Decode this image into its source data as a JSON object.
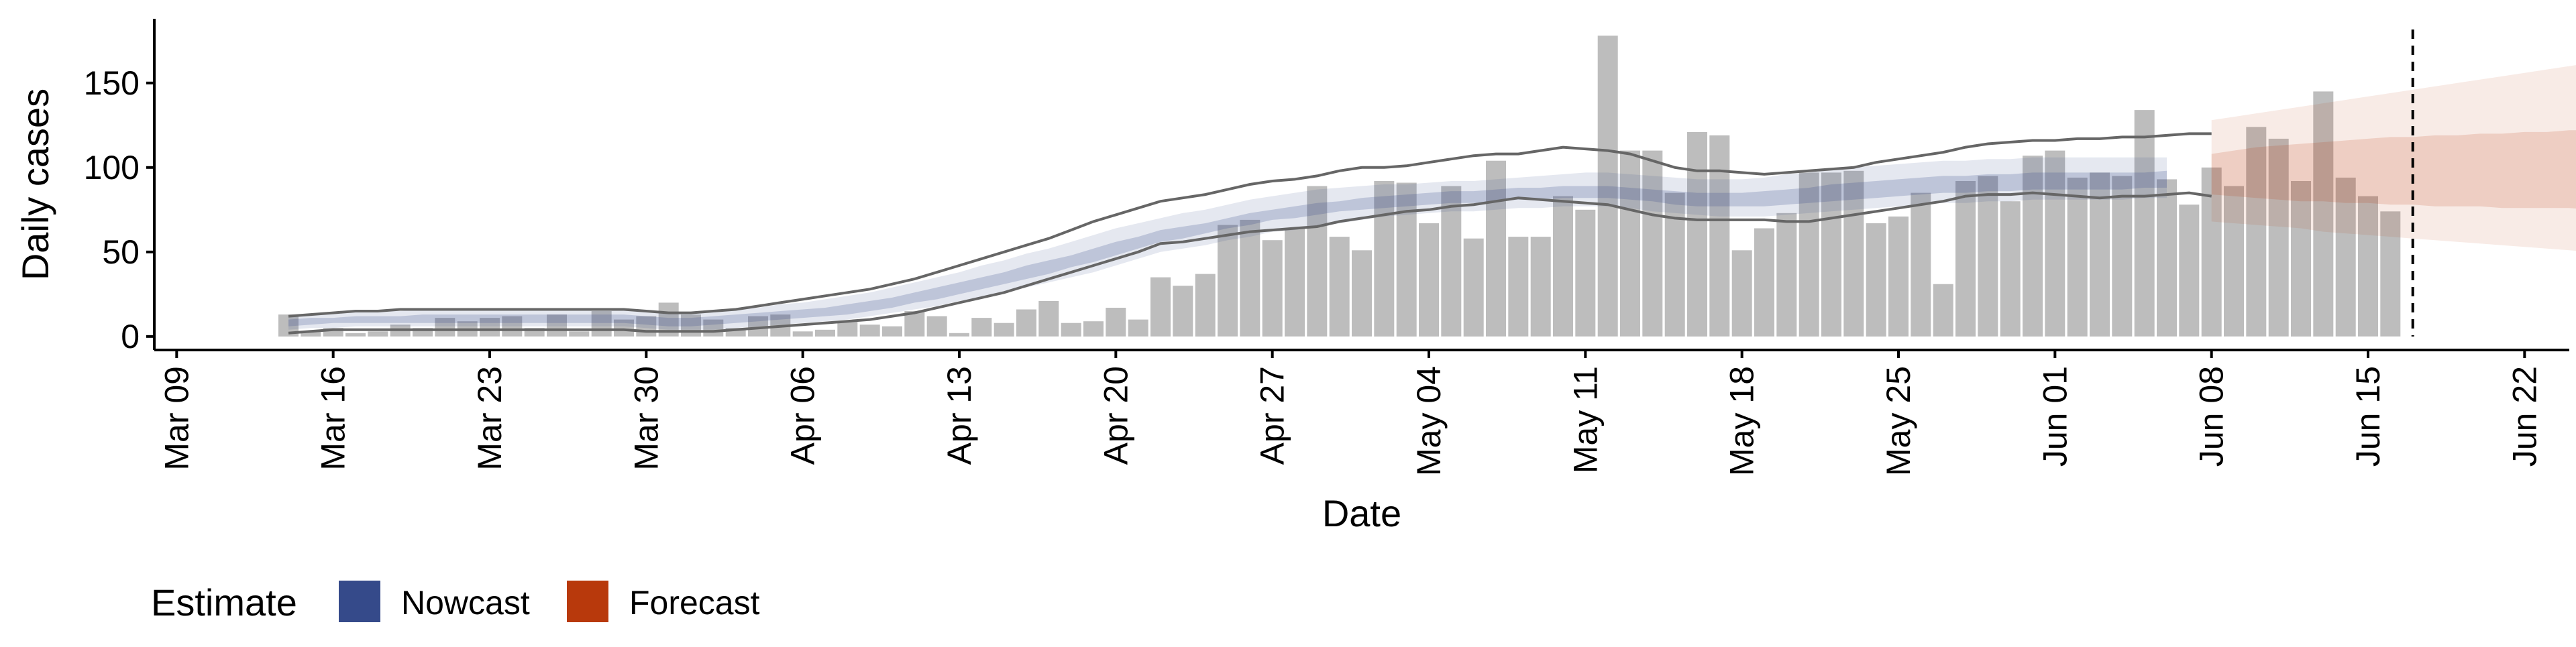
{
  "chart_data": {
    "type": "bar",
    "xlabel": "Date",
    "ylabel": "Daily cases",
    "xlim": [
      "2020-03-08",
      "2020-06-24"
    ],
    "ylim": [
      -8,
      188
    ],
    "x_ticks": [
      "2020-03-09",
      "2020-03-16",
      "2020-03-23",
      "2020-03-30",
      "2020-04-06",
      "2020-04-13",
      "2020-04-20",
      "2020-04-27",
      "2020-05-04",
      "2020-05-11",
      "2020-05-18",
      "2020-05-25",
      "2020-06-01",
      "2020-06-08",
      "2020-06-15",
      "2020-06-22"
    ],
    "x_tick_labels": [
      "Mar 09",
      "Mar 16",
      "Mar 23",
      "Mar 30",
      "Apr 06",
      "Apr 13",
      "Apr 20",
      "Apr 27",
      "May 04",
      "May 11",
      "May 18",
      "May 25",
      "Jun 01",
      "Jun 08",
      "Jun 15",
      "Jun 22"
    ],
    "y_ticks": [
      0,
      50,
      100,
      150
    ],
    "y_tick_labels": [
      "0",
      "50",
      "100",
      "150"
    ],
    "bars": {
      "start_date": "2020-03-14",
      "values": [
        13,
        3,
        5,
        2,
        3,
        7,
        5,
        11,
        9,
        11,
        12,
        5,
        13,
        3,
        15,
        10,
        12,
        20,
        13,
        10,
        5,
        12,
        13,
        3,
        4,
        9,
        7,
        6,
        15,
        12,
        2,
        11,
        8,
        16,
        21,
        8,
        9,
        17,
        10,
        35,
        30,
        37,
        66,
        69,
        57,
        64,
        89,
        59,
        51,
        92,
        91,
        67,
        89,
        58,
        104,
        59,
        59,
        83,
        75,
        178,
        110,
        110,
        85,
        121,
        119,
        51,
        64,
        73,
        97,
        97,
        98,
        67,
        71,
        85,
        31,
        92,
        95,
        80,
        107,
        110,
        94,
        97,
        95,
        134,
        93,
        78,
        100,
        89,
        124,
        117,
        92,
        145,
        94,
        83,
        74
      ]
    },
    "nowcast": {
      "start_date": "2020-03-14",
      "lower90": [
        4,
        5,
        5,
        6,
        6,
        6,
        6,
        6,
        6,
        6,
        6,
        6,
        6,
        6,
        6,
        6,
        5,
        4,
        4,
        4,
        5,
        6,
        7,
        8,
        9,
        10,
        12,
        14,
        16,
        18,
        21,
        23,
        26,
        29,
        32,
        35,
        38,
        42,
        46,
        50,
        52,
        54,
        57,
        59,
        62,
        63,
        65,
        67,
        69,
        71,
        72,
        73,
        74,
        74,
        75,
        76,
        76,
        77,
        77,
        77,
        76,
        74,
        73,
        72,
        71,
        71,
        71,
        72,
        73,
        74,
        75,
        76,
        77,
        78,
        79,
        79,
        80,
        80,
        81,
        81,
        81,
        81,
        81,
        82,
        82
      ],
      "upper90": [
        12,
        13,
        14,
        15,
        15,
        15,
        16,
        16,
        16,
        16,
        16,
        16,
        16,
        16,
        16,
        16,
        15,
        14,
        14,
        15,
        16,
        17,
        19,
        20,
        22,
        24,
        26,
        29,
        32,
        35,
        38,
        42,
        45,
        49,
        52,
        56,
        60,
        64,
        67,
        70,
        73,
        75,
        78,
        81,
        83,
        85,
        87,
        88,
        89,
        90,
        90,
        91,
        92,
        92,
        93,
        94,
        95,
        96,
        97,
        97,
        96,
        95,
        94,
        93,
        93,
        93,
        94,
        96,
        97,
        99,
        100,
        101,
        102,
        103,
        104,
        104,
        105,
        105,
        106,
        106,
        106,
        106,
        106,
        106,
        106
      ],
      "lower50": [
        6,
        7,
        8,
        8,
        8,
        8,
        8,
        8,
        8,
        8,
        8,
        8,
        8,
        8,
        8,
        8,
        7,
        6,
        6,
        7,
        8,
        9,
        10,
        11,
        12,
        13,
        15,
        17,
        20,
        22,
        25,
        28,
        31,
        34,
        37,
        41,
        44,
        48,
        52,
        56,
        58,
        61,
        64,
        66,
        69,
        70,
        72,
        74,
        75,
        76,
        77,
        78,
        79,
        79,
        80,
        81,
        81,
        82,
        82,
        82,
        81,
        80,
        78,
        77,
        77,
        77,
        77,
        78,
        79,
        80,
        81,
        82,
        83,
        84,
        85,
        85,
        86,
        86,
        87,
        87,
        87,
        87,
        87,
        88,
        88
      ],
      "upper50": [
        10,
        11,
        11,
        12,
        12,
        12,
        13,
        13,
        13,
        13,
        13,
        13,
        13,
        13,
        13,
        13,
        12,
        11,
        11,
        12,
        13,
        14,
        15,
        16,
        17,
        19,
        21,
        23,
        26,
        29,
        32,
        35,
        38,
        42,
        45,
        48,
        52,
        56,
        59,
        63,
        65,
        67,
        70,
        73,
        75,
        77,
        79,
        80,
        82,
        83,
        84,
        85,
        86,
        86,
        87,
        88,
        88,
        89,
        89,
        89,
        88,
        87,
        86,
        85,
        85,
        85,
        86,
        87,
        88,
        90,
        91,
        92,
        93,
        94,
        95,
        95,
        96,
        96,
        97,
        97,
        97,
        97,
        97,
        97,
        98
      ]
    },
    "observed_band": {
      "start_date": "2020-03-14",
      "lower": [
        2,
        3,
        4,
        4,
        4,
        4,
        4,
        4,
        4,
        4,
        4,
        4,
        4,
        4,
        4,
        4,
        3,
        3,
        3,
        3,
        4,
        5,
        6,
        7,
        8,
        9,
        10,
        12,
        14,
        17,
        20,
        23,
        26,
        30,
        34,
        38,
        42,
        46,
        50,
        55,
        56,
        58,
        60,
        62,
        63,
        64,
        65,
        68,
        70,
        72,
        74,
        75,
        77,
        78,
        80,
        82,
        81,
        80,
        79,
        78,
        75,
        72,
        70,
        69,
        69,
        69,
        69,
        68,
        68,
        70,
        72,
        74,
        76,
        78,
        80,
        83,
        84,
        84,
        85,
        84,
        83,
        82,
        83,
        83,
        84,
        85,
        83
      ],
      "upper": [
        12,
        13,
        14,
        15,
        15,
        16,
        16,
        16,
        16,
        16,
        16,
        16,
        16,
        16,
        16,
        16,
        15,
        14,
        14,
        15,
        16,
        18,
        20,
        22,
        24,
        26,
        28,
        31,
        34,
        38,
        42,
        46,
        50,
        54,
        58,
        63,
        68,
        72,
        76,
        80,
        82,
        84,
        87,
        90,
        92,
        93,
        95,
        98,
        100,
        100,
        101,
        103,
        105,
        107,
        108,
        108,
        110,
        112,
        111,
        110,
        108,
        104,
        100,
        98,
        98,
        97,
        96,
        97,
        98,
        99,
        100,
        103,
        105,
        107,
        109,
        112,
        114,
        115,
        116,
        116,
        117,
        117,
        118,
        118,
        119,
        120,
        120
      ]
    },
    "forecast": {
      "start_date": "2020-06-08",
      "lower90": [
        68,
        67,
        66,
        65,
        64,
        62,
        61,
        60,
        59,
        58,
        57,
        56,
        55,
        54,
        53,
        52,
        51,
        50,
        49,
        48,
        47,
        46,
        45
      ],
      "upper90": [
        128,
        130,
        132,
        134,
        136,
        138,
        140,
        142,
        144,
        146,
        148,
        150,
        152,
        154,
        156,
        158,
        160,
        162,
        164,
        166,
        168,
        170,
        172
      ],
      "lower50": [
        84,
        83,
        82,
        81,
        80,
        80,
        79,
        79,
        78,
        78,
        77,
        77,
        77,
        76,
        76,
        76,
        76,
        75,
        75,
        75,
        75,
        74,
        74
      ],
      "upper50": [
        108,
        110,
        112,
        113,
        114,
        115,
        116,
        117,
        118,
        118,
        119,
        119,
        120,
        120,
        121,
        121,
        122,
        122,
        122,
        123,
        123,
        124,
        124
      ]
    },
    "vline_date": "2020-06-17",
    "legend": {
      "title": "Estimate",
      "position": "bottom-left",
      "items": [
        {
          "label": "Nowcast",
          "color": "#354A8A"
        },
        {
          "label": "Forecast",
          "color": "#B8390C"
        }
      ]
    },
    "colors": {
      "bar": "#bdbdbd",
      "nowcast": "#354A8A",
      "forecast": "#B8390C",
      "observed_line": "#666666",
      "vline": "#000000"
    }
  }
}
